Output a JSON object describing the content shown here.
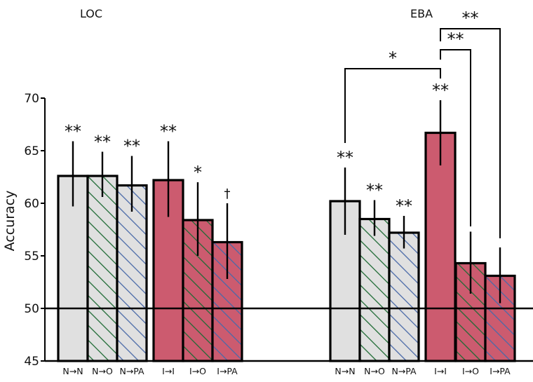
{
  "chart_data": {
    "type": "bar",
    "ylabel": "Accuracy",
    "ylim": [
      45,
      70
    ],
    "yticks": [
      45,
      50,
      55,
      60,
      65,
      70
    ],
    "reference_line": 50,
    "grid": false,
    "colors": {
      "natural": "#e0e0e0",
      "imagery": "#cc5b6f",
      "hatch_object": "#1f6b35",
      "hatch_pa": "#4a6aa8",
      "edge": "#000000"
    },
    "panels": [
      {
        "title": "LOC",
        "bars": [
          {
            "label": "N→N",
            "value": 62.6,
            "err_low": 59.7,
            "err_high": 65.9,
            "fill": "natural",
            "hatch": null,
            "sig": "**"
          },
          {
            "label": "N→O",
            "value": 62.6,
            "err_low": 60.6,
            "err_high": 64.9,
            "fill": "natural",
            "hatch": "hatch_object",
            "sig": "**"
          },
          {
            "label": "N→PA",
            "value": 61.7,
            "err_low": 59.2,
            "err_high": 64.5,
            "fill": "natural",
            "hatch": "hatch_pa",
            "sig": "**"
          },
          {
            "label": "I→I",
            "value": 62.2,
            "err_low": 58.7,
            "err_high": 65.9,
            "fill": "imagery",
            "hatch": null,
            "sig": "**"
          },
          {
            "label": "I→O",
            "value": 58.4,
            "err_low": 55.0,
            "err_high": 62.0,
            "fill": "imagery",
            "hatch": "hatch_object",
            "sig": "*"
          },
          {
            "label": "I→PA",
            "value": 56.3,
            "err_low": 52.8,
            "err_high": 60.0,
            "fill": "imagery",
            "hatch": "hatch_pa",
            "sig": "†"
          }
        ],
        "comparisons": []
      },
      {
        "title": "EBA",
        "bars": [
          {
            "label": "N→N",
            "value": 60.2,
            "err_low": 57.0,
            "err_high": 63.4,
            "fill": "natural",
            "hatch": null,
            "sig": "**"
          },
          {
            "label": "N→O",
            "value": 58.5,
            "err_low": 56.9,
            "err_high": 60.3,
            "fill": "natural",
            "hatch": "hatch_object",
            "sig": "**"
          },
          {
            "label": "N→PA",
            "value": 57.2,
            "err_low": 55.7,
            "err_high": 58.8,
            "fill": "natural",
            "hatch": "hatch_pa",
            "sig": "**"
          },
          {
            "label": "I→I",
            "value": 66.7,
            "err_low": 63.6,
            "err_high": 69.8,
            "fill": "imagery",
            "hatch": null,
            "sig": "**"
          },
          {
            "label": "I→O",
            "value": 54.3,
            "err_low": 51.4,
            "err_high": 57.3,
            "fill": "imagery",
            "hatch": "hatch_object",
            "sig": ""
          },
          {
            "label": "I→PA",
            "value": 53.1,
            "err_low": 50.5,
            "err_high": 55.8,
            "fill": "imagery",
            "hatch": "hatch_pa",
            "sig": ""
          }
        ],
        "comparisons": [
          {
            "from": 0,
            "to": 3,
            "sig": "*"
          },
          {
            "from": 3,
            "to": 4,
            "sig": "**"
          },
          {
            "from": 3,
            "to": 5,
            "sig": "**"
          }
        ]
      }
    ]
  }
}
